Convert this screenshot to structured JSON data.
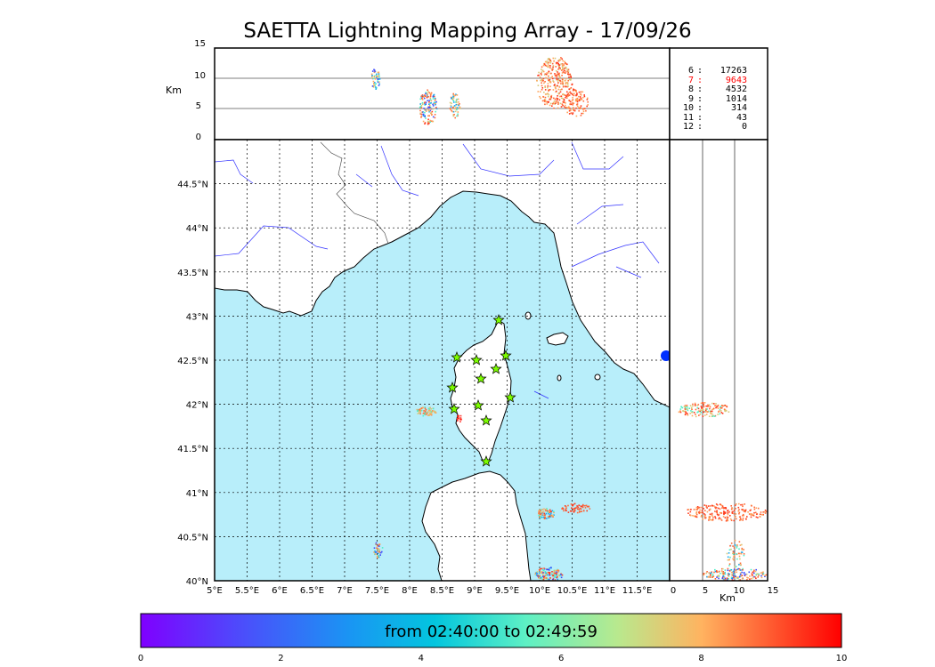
{
  "title": "SAETTA Lightning Mapping Array - 17/09/26",
  "altitude_panel": {
    "unit_label": "Km",
    "ticks": [
      "0",
      "5",
      "10",
      "15"
    ]
  },
  "side_panel": {
    "unit_label": "Km",
    "ticks": [
      "0",
      "5",
      "10",
      "15"
    ]
  },
  "station_counts": [
    {
      "stations": "6",
      "count": "17263",
      "color": "#000000"
    },
    {
      "stations": "7",
      "count": "9643",
      "color": "#ff0000"
    },
    {
      "stations": "8",
      "count": "4532",
      "color": "#000000"
    },
    {
      "stations": "9",
      "count": "1014",
      "color": "#000000"
    },
    {
      "stations": "10",
      "count": "314",
      "color": "#000000"
    },
    {
      "stations": "11",
      "count": "43",
      "color": "#000000"
    },
    {
      "stations": "12",
      "count": "0",
      "color": "#000000"
    }
  ],
  "map": {
    "lon_ticks": [
      "5°E",
      "5.5°E",
      "6°E",
      "6.5°E",
      "7°E",
      "7.5°E",
      "8°E",
      "8.5°E",
      "9°E",
      "9.5°E",
      "10°E",
      "10.5°E",
      "11°E",
      "11.5°E"
    ],
    "lat_ticks": [
      "40°N",
      "40.5°N",
      "41°N",
      "41.5°N",
      "42°N",
      "42.5°N",
      "43°N",
      "43.5°N",
      "44°N",
      "44.5°N"
    ],
    "sea_color": "#b8eefa",
    "land_color": "#ffffff",
    "river_color": "#3333ff",
    "station_color": "#7cfc00"
  },
  "colorbar": {
    "label": "from 02:40:00 to 02:49:59",
    "ticks": [
      "0",
      "2",
      "4",
      "6",
      "8",
      "10"
    ],
    "colormap": "rainbow"
  }
}
